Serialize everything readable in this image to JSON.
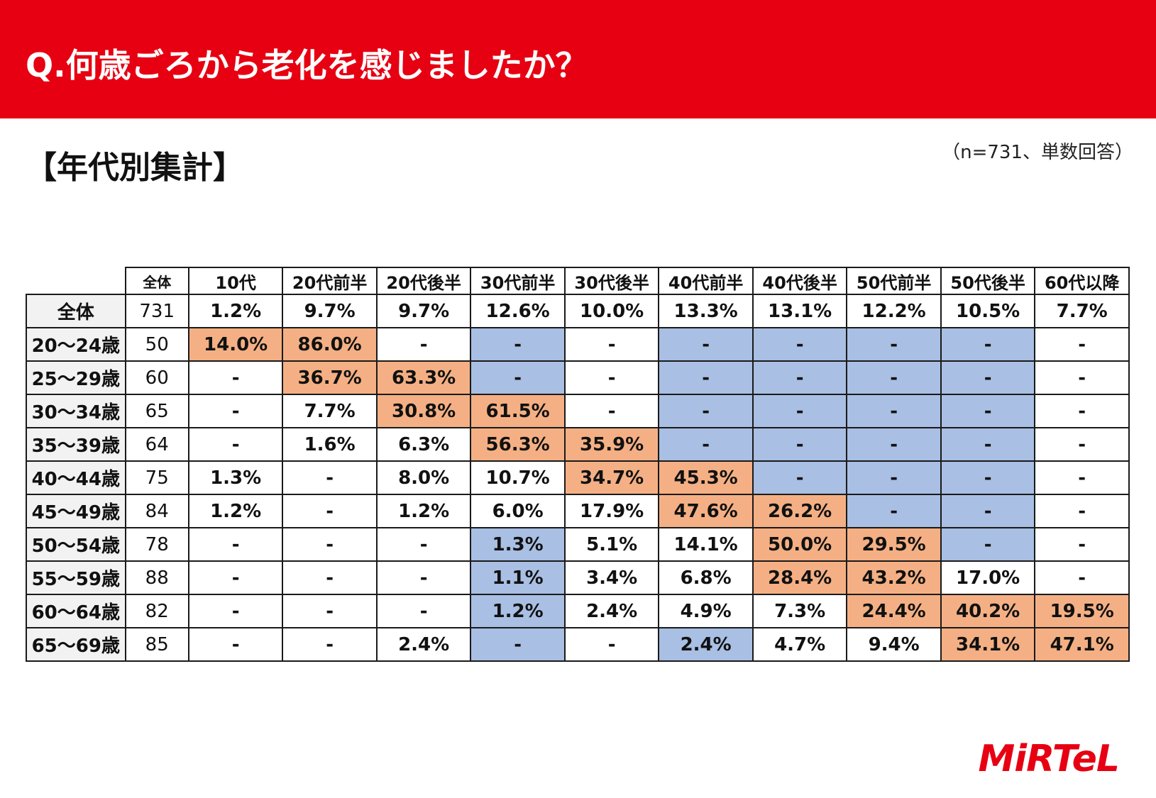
{
  "header": {
    "title": "Q.何歳ごろから老化を感じましたか？"
  },
  "section": {
    "title": "【年代別集計】",
    "note": "（n=731、単数回答）"
  },
  "logo": {
    "text": "MiRTeL"
  },
  "colors": {
    "header_red": "#e60012",
    "highlight_orange": "#f4b084",
    "highlight_blue": "#a9bfe3"
  },
  "chart_data": {
    "type": "table",
    "n_header": "全体",
    "columns": [
      "10代",
      "20代前半",
      "20代後半",
      "30代前半",
      "30代後半",
      "40代前半",
      "40代後半",
      "50代前半",
      "50代後半",
      "60代以降"
    ],
    "rows": [
      {
        "label": "全体",
        "n": "731",
        "values": [
          "1.2%",
          "9.7%",
          "9.7%",
          "12.6%",
          "10.0%",
          "13.3%",
          "13.1%",
          "12.2%",
          "10.5%",
          "7.7%"
        ],
        "highlight": [
          "",
          "",
          "",
          "",
          "",
          "",
          "",
          "",
          "",
          ""
        ]
      },
      {
        "label": "20～24歳",
        "n": "50",
        "values": [
          "14.0%",
          "86.0%",
          "-",
          "-",
          "-",
          "-",
          "-",
          "-",
          "-",
          "-"
        ],
        "highlight": [
          "orange",
          "orange",
          "",
          "blue",
          "",
          "blue",
          "blue",
          "blue",
          "blue",
          ""
        ]
      },
      {
        "label": "25～29歳",
        "n": "60",
        "values": [
          "-",
          "36.7%",
          "63.3%",
          "-",
          "-",
          "-",
          "-",
          "-",
          "-",
          "-"
        ],
        "highlight": [
          "",
          "orange",
          "orange",
          "blue",
          "",
          "blue",
          "blue",
          "blue",
          "blue",
          ""
        ]
      },
      {
        "label": "30～34歳",
        "n": "65",
        "values": [
          "-",
          "7.7%",
          "30.8%",
          "61.5%",
          "-",
          "-",
          "-",
          "-",
          "-",
          "-"
        ],
        "highlight": [
          "",
          "",
          "orange",
          "orange",
          "",
          "blue",
          "blue",
          "blue",
          "blue",
          ""
        ]
      },
      {
        "label": "35～39歳",
        "n": "64",
        "values": [
          "-",
          "1.6%",
          "6.3%",
          "56.3%",
          "35.9%",
          "-",
          "-",
          "-",
          "-",
          "-"
        ],
        "highlight": [
          "",
          "",
          "",
          "orange",
          "orange",
          "blue",
          "blue",
          "blue",
          "blue",
          ""
        ]
      },
      {
        "label": "40～44歳",
        "n": "75",
        "values": [
          "1.3%",
          "-",
          "8.0%",
          "10.7%",
          "34.7%",
          "45.3%",
          "-",
          "-",
          "-",
          "-"
        ],
        "highlight": [
          "",
          "",
          "",
          "",
          "orange",
          "orange",
          "blue",
          "blue",
          "blue",
          ""
        ]
      },
      {
        "label": "45～49歳",
        "n": "84",
        "values": [
          "1.2%",
          "-",
          "1.2%",
          "6.0%",
          "17.9%",
          "47.6%",
          "26.2%",
          "-",
          "-",
          "-"
        ],
        "highlight": [
          "",
          "",
          "",
          "",
          "",
          "orange",
          "orange",
          "blue",
          "blue",
          ""
        ]
      },
      {
        "label": "50～54歳",
        "n": "78",
        "values": [
          "-",
          "-",
          "-",
          "1.3%",
          "5.1%",
          "14.1%",
          "50.0%",
          "29.5%",
          "-",
          "-"
        ],
        "highlight": [
          "",
          "",
          "",
          "blue",
          "",
          "",
          "orange",
          "orange",
          "blue",
          ""
        ]
      },
      {
        "label": "55～59歳",
        "n": "88",
        "values": [
          "-",
          "-",
          "-",
          "1.1%",
          "3.4%",
          "6.8%",
          "28.4%",
          "43.2%",
          "17.0%",
          "-"
        ],
        "highlight": [
          "",
          "",
          "",
          "blue",
          "",
          "",
          "orange",
          "orange",
          "",
          ""
        ]
      },
      {
        "label": "60～64歳",
        "n": "82",
        "values": [
          "-",
          "-",
          "-",
          "1.2%",
          "2.4%",
          "4.9%",
          "7.3%",
          "24.4%",
          "40.2%",
          "19.5%"
        ],
        "highlight": [
          "",
          "",
          "",
          "blue",
          "",
          "",
          "",
          "orange",
          "orange",
          "orange"
        ]
      },
      {
        "label": "65～69歳",
        "n": "85",
        "values": [
          "-",
          "-",
          "2.4%",
          "-",
          "-",
          "2.4%",
          "4.7%",
          "9.4%",
          "34.1%",
          "47.1%"
        ],
        "highlight": [
          "",
          "",
          "",
          "blue",
          "",
          "blue",
          "",
          "",
          "orange",
          "orange"
        ]
      }
    ]
  }
}
